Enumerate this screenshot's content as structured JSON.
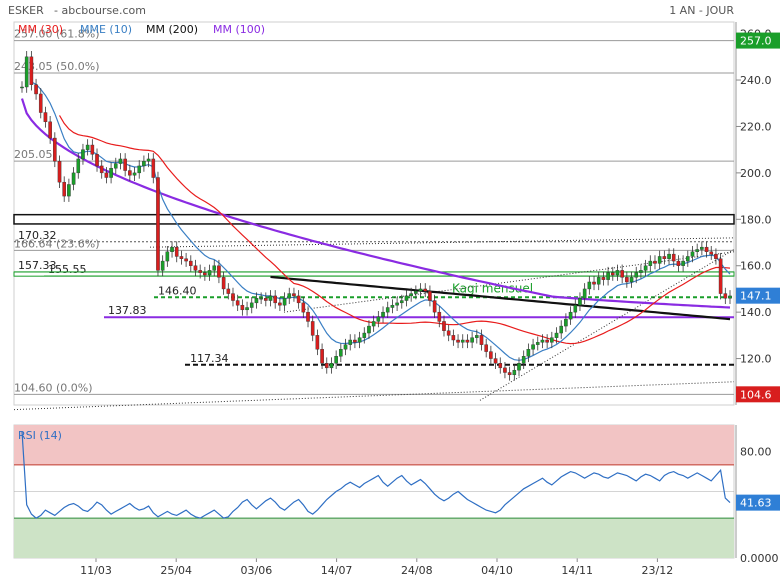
{
  "header": {
    "symbol": "ESKER",
    "source": "- abcbourse.com",
    "period": "1 AN - JOUR"
  },
  "legend": [
    {
      "label": "MM (30)",
      "color": "#e81c1c"
    },
    {
      "label": "MME (10)",
      "color": "#3a7fc4"
    },
    {
      "label": "MM (200)",
      "color": "#111111"
    },
    {
      "label": "MM (100)",
      "color": "#8a2be2"
    }
  ],
  "chart_data": [
    {
      "type": "candlestick",
      "title": "ESKER",
      "ylim": [
        100,
        265
      ],
      "y_ticks": [
        120,
        140,
        160,
        180,
        200,
        220,
        240,
        260
      ],
      "y_tick_labels": [
        "120.0",
        "140.0",
        "160.0",
        "180.0",
        "200.0",
        "220.0",
        "240.0",
        "260.0"
      ],
      "x_tick_labels": [
        "11/03",
        "25/04",
        "03/06",
        "14/07",
        "24/08",
        "04/10",
        "14/11",
        "23/12"
      ],
      "price_tags": [
        {
          "value": 257.0,
          "label": "257.0",
          "color": "#1a9e2a"
        },
        {
          "value": 147.1,
          "label": "147.1",
          "color": "#2f7fd6"
        },
        {
          "value": 104.6,
          "label": "104.6",
          "color": "#d81e1e"
        }
      ],
      "fibonacci": [
        {
          "value": 257.0,
          "label": "257.00 (61.8%)"
        },
        {
          "value": 243.05,
          "label": "243.05 (50.0%)"
        },
        {
          "value": 205.05,
          "label": "205.05"
        },
        {
          "value": 166.64,
          "label": "166.64 (23.6%)"
        },
        {
          "value": 104.6,
          "label": "104.60 (0.0%)"
        }
      ],
      "levels": [
        {
          "value": 170.32,
          "label": "170.32"
        },
        {
          "value": 157.33,
          "label": "157.33"
        },
        {
          "value": 155.55,
          "label": "155.55"
        },
        {
          "value": 146.4,
          "label": "146.40"
        },
        {
          "value": 137.83,
          "label": "137.83"
        },
        {
          "value": 117.34,
          "label": "117.34"
        }
      ],
      "annotation": "Kagi mensuel",
      "close_series": [
        237,
        250,
        238,
        234,
        226,
        222,
        215,
        205,
        196,
        190,
        195,
        200,
        206,
        210,
        212,
        208,
        203,
        200,
        198,
        202,
        204,
        206,
        201,
        199,
        200,
        203,
        205,
        206,
        198,
        158,
        162,
        166,
        168,
        164,
        163,
        162,
        160,
        158,
        157,
        156,
        158,
        160,
        155,
        150,
        148,
        145,
        143,
        141,
        142,
        144,
        146,
        146,
        145,
        147,
        144,
        143,
        146,
        148,
        147,
        144,
        140,
        136,
        130,
        124,
        118,
        116,
        118,
        121,
        124,
        126,
        128,
        127,
        129,
        131,
        134,
        136,
        138,
        140,
        142,
        143,
        144,
        145,
        147,
        148,
        149,
        150,
        149,
        145,
        140,
        136,
        132,
        130,
        128,
        127,
        128,
        127,
        129,
        130,
        126,
        123,
        120,
        118,
        116,
        114,
        113,
        115,
        118,
        121,
        124,
        126,
        127,
        128,
        127,
        129,
        131,
        134,
        137,
        140,
        143,
        146,
        150,
        153,
        152,
        155,
        154,
        157,
        156,
        158,
        155,
        153,
        155,
        157,
        158,
        160,
        162,
        161,
        164,
        163,
        165,
        162,
        160,
        162,
        164,
        166,
        167,
        168,
        166,
        165,
        163,
        148,
        146,
        147
      ],
      "series": [
        {
          "name": "MM (30)",
          "color": "#e81c1c"
        },
        {
          "name": "MME (10)",
          "color": "#3a7fc4"
        },
        {
          "name": "MM (200)",
          "color": "#111111"
        },
        {
          "name": "MM (100)",
          "color": "#8a2be2"
        }
      ]
    },
    {
      "type": "line",
      "title": "RSI (14)",
      "ylim": [
        0,
        100
      ],
      "y_ticks": [
        0,
        80
      ],
      "y_tick_labels": [
        "0.0000",
        "80.00"
      ],
      "bands": {
        "overbought": 70,
        "oversold": 30
      },
      "last_value": 41.63,
      "last_label": "41.63",
      "values": [
        95,
        40,
        33,
        30,
        32,
        36,
        34,
        32,
        35,
        38,
        40,
        41,
        39,
        36,
        35,
        38,
        42,
        40,
        36,
        33,
        35,
        37,
        39,
        41,
        38,
        36,
        37,
        39,
        34,
        31,
        33,
        35,
        33,
        32,
        34,
        36,
        33,
        31,
        30,
        32,
        34,
        36,
        33,
        30,
        31,
        35,
        38,
        42,
        44,
        40,
        37,
        40,
        43,
        45,
        42,
        38,
        36,
        39,
        42,
        44,
        40,
        35,
        33,
        36,
        40,
        44,
        47,
        50,
        52,
        55,
        57,
        55,
        53,
        56,
        58,
        60,
        62,
        57,
        54,
        57,
        60,
        62,
        58,
        55,
        57,
        59,
        56,
        52,
        48,
        45,
        43,
        45,
        48,
        50,
        47,
        44,
        42,
        40,
        38,
        36,
        35,
        34,
        36,
        40,
        43,
        46,
        49,
        52,
        54,
        56,
        58,
        60,
        57,
        55,
        58,
        61,
        63,
        65,
        64,
        62,
        60,
        62,
        64,
        63,
        61,
        60,
        62,
        64,
        63,
        62,
        60,
        58,
        61,
        63,
        62,
        60,
        58,
        62,
        64,
        65,
        63,
        62,
        60,
        62,
        64,
        62,
        60,
        58,
        62,
        66,
        45,
        41.63
      ]
    }
  ]
}
